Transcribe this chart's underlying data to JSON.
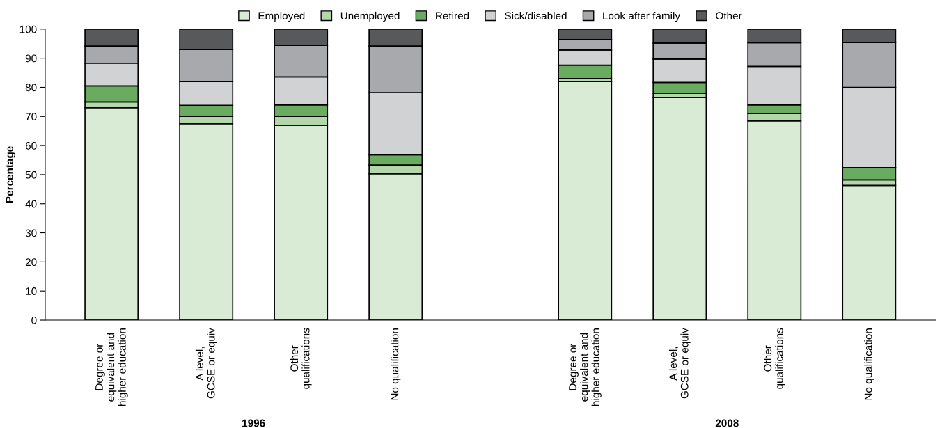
{
  "chart_data": {
    "type": "bar",
    "stacked": true,
    "ylabel": "Percentage",
    "ylim": [
      0,
      100
    ],
    "yticks": [
      0,
      10,
      20,
      30,
      40,
      50,
      60,
      70,
      80,
      90,
      100
    ],
    "grid": false,
    "legend": "top",
    "categories": [
      "Degree or\nequivalent and\nhigher education",
      "A level,\nGCSE or equiv",
      "Other\nqualifications",
      "No qualification",
      null,
      "Degree or\nequivalent and\nhigher education",
      "A level,\nGCSE or equiv",
      "Other\nqualifications",
      "No qualification"
    ],
    "series": [
      {
        "name": "Employed",
        "color": "#d9ead5",
        "values": [
          73,
          67.5,
          67,
          50.3,
          null,
          82,
          76.5,
          68.5,
          46.3
        ]
      },
      {
        "name": "Unemployed",
        "color": "#b3d6aa",
        "values": [
          2,
          2.5,
          3,
          3,
          null,
          1,
          1.5,
          2.5,
          1.9
        ]
      },
      {
        "name": "Retired",
        "color": "#69ab5f",
        "values": [
          5.5,
          3.8,
          4,
          3.5,
          null,
          4.6,
          3.7,
          3,
          4.2
        ]
      },
      {
        "name": "Sick/disabled",
        "color": "#d1d2d4",
        "values": [
          7.8,
          8.2,
          9.6,
          21.4,
          null,
          5.2,
          8,
          13.2,
          27.6
        ]
      },
      {
        "name": "Look after family",
        "color": "#a7a9ac",
        "values": [
          5.9,
          11,
          10.8,
          16,
          null,
          3.6,
          5.5,
          8.1,
          15.4
        ]
      },
      {
        "name": "Other",
        "color": "#58595b",
        "values": [
          5.8,
          7,
          5.6,
          5.8,
          null,
          3.6,
          4.8,
          4.7,
          4.6
        ]
      }
    ],
    "annotations": [
      "1996",
      "2008"
    ]
  }
}
